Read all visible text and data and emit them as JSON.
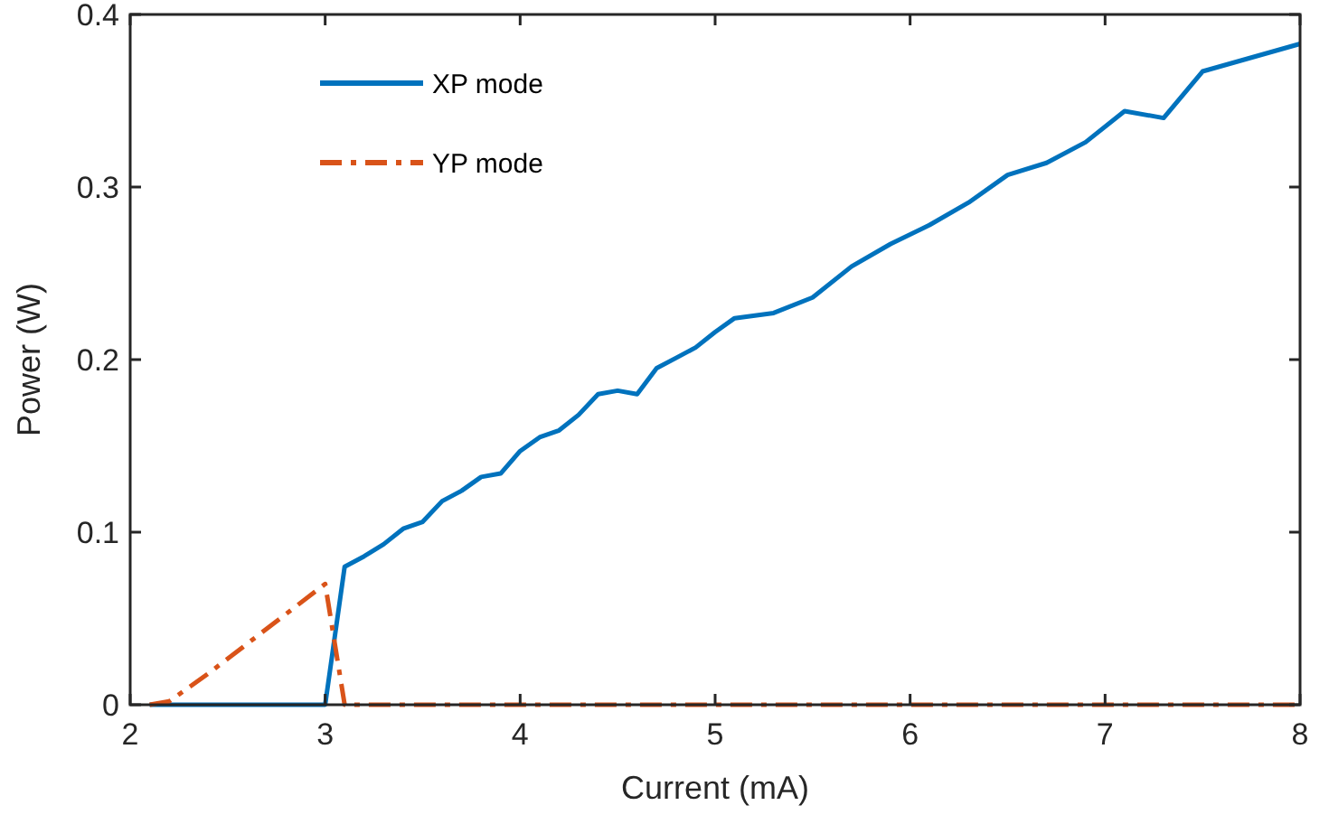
{
  "chart_data": {
    "type": "line",
    "xlabel": "Current (mA)",
    "ylabel": "Power (W)",
    "xlim": [
      2,
      8
    ],
    "ylim": [
      0,
      0.4
    ],
    "xticks": [
      2,
      3,
      4,
      5,
      6,
      7,
      8
    ],
    "yticks": [
      0,
      0.1,
      0.2,
      0.3,
      0.4
    ],
    "grid": false,
    "legend": "top left",
    "series": [
      {
        "name": "XP mode",
        "color": "#0072bd",
        "line_style": "solid",
        "x": [
          2.1,
          2.6,
          2.8,
          3.0,
          3.1,
          3.2,
          3.3,
          3.4,
          3.5,
          3.6,
          3.7,
          3.8,
          3.9,
          4.0,
          4.1,
          4.2,
          4.3,
          4.4,
          4.5,
          4.6,
          4.7,
          4.8,
          4.9,
          5.0,
          5.1,
          5.3,
          5.5,
          5.7,
          5.9,
          6.1,
          6.3,
          6.5,
          6.7,
          6.9,
          7.1,
          7.3,
          7.5,
          8.0
        ],
        "values": [
          0,
          0,
          0,
          0,
          0.08,
          0.086,
          0.093,
          0.102,
          0.106,
          0.118,
          0.124,
          0.132,
          0.134,
          0.147,
          0.155,
          0.159,
          0.168,
          0.18,
          0.182,
          0.18,
          0.195,
          0.201,
          0.207,
          0.216,
          0.224,
          0.227,
          0.236,
          0.254,
          0.267,
          0.278,
          0.291,
          0.307,
          0.314,
          0.326,
          0.344,
          0.34,
          0.367,
          0.383
        ]
      },
      {
        "name": "YP mode",
        "color": "#d95319",
        "line_style": "dashed",
        "x": [
          2.1,
          2.2,
          2.4,
          3.0,
          3.1,
          8.0
        ],
        "values": [
          0,
          0.002,
          0.018,
          0.07,
          0,
          0
        ]
      }
    ]
  }
}
